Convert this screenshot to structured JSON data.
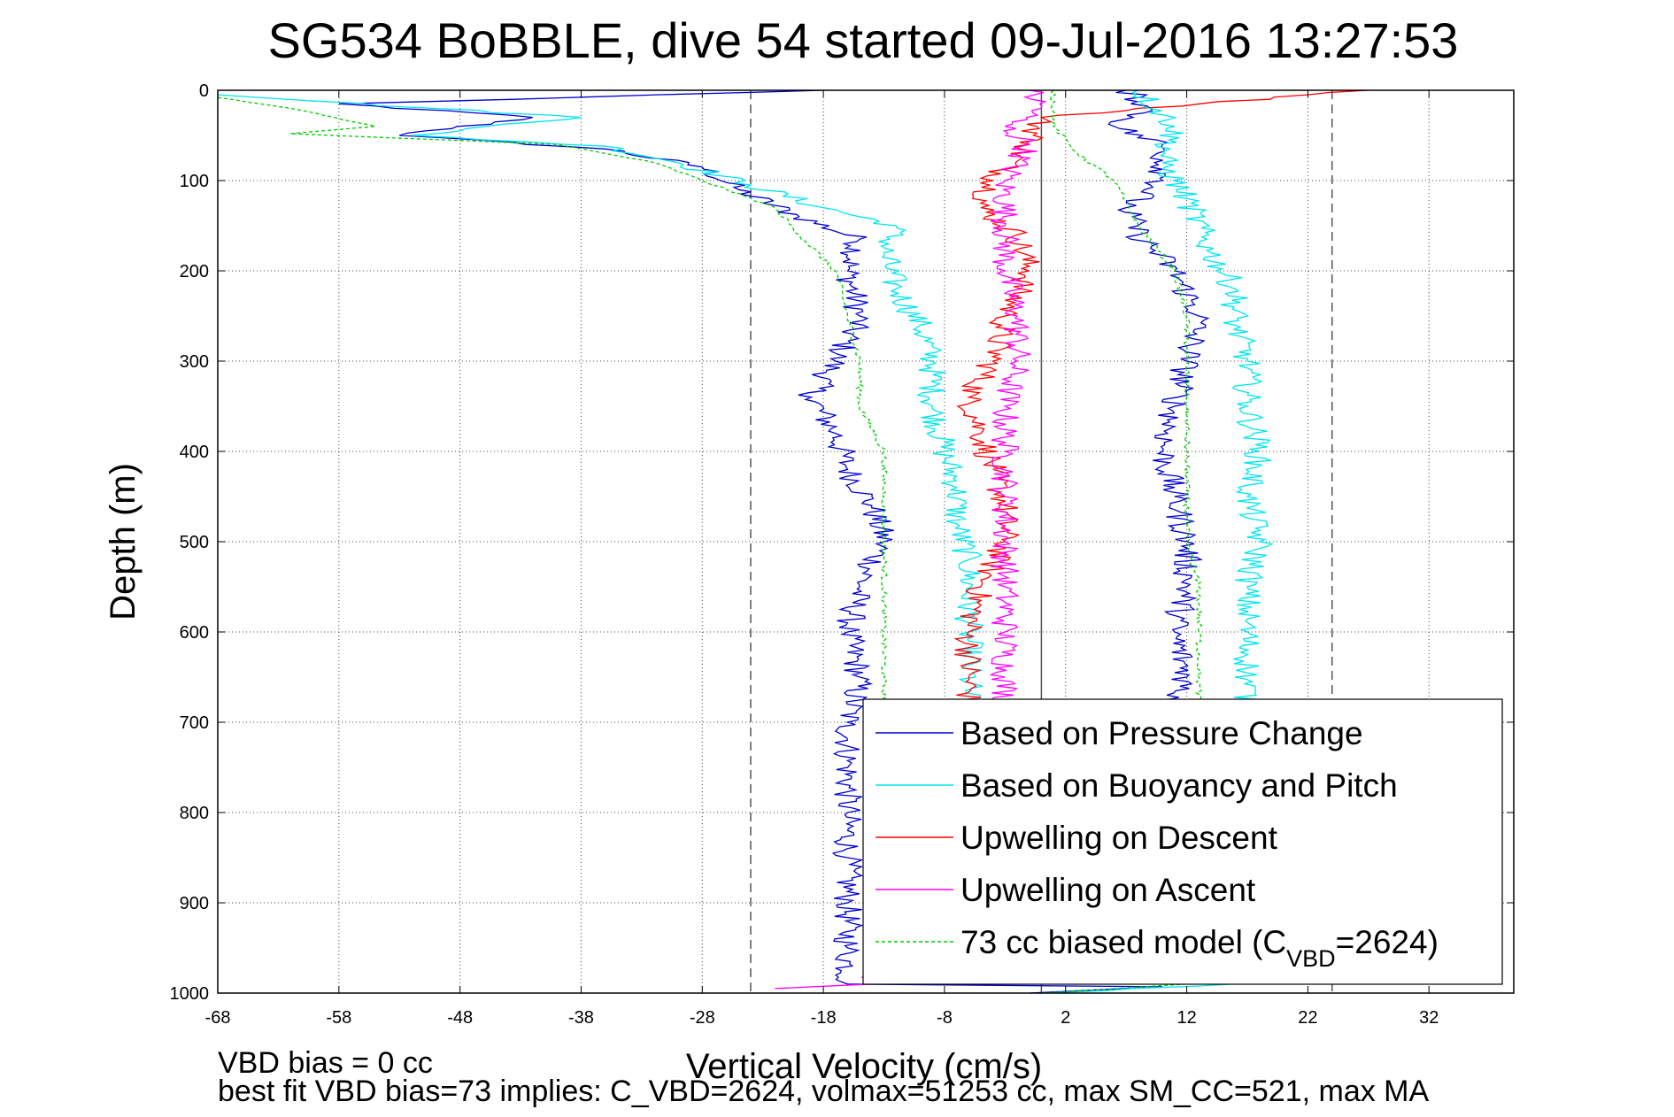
{
  "chart_data": {
    "type": "line",
    "title": "SG534 BoBBLE, dive 54 started 09-Jul-2016 13:27:53",
    "xlabel": "Vertical Velocity (cm/s)",
    "ylabel": "Depth (m)",
    "xlim": [
      -68,
      39
    ],
    "ylim": [
      0,
      1000
    ],
    "y_reversed": true,
    "grid": true,
    "legend_position": "bottom-right",
    "x_ticks": [
      "-68",
      "-58",
      "-48",
      "-38",
      "-28",
      "-18",
      "-8",
      "2",
      "12",
      "22",
      "32"
    ],
    "y_ticks": [
      "0",
      "100",
      "200",
      "300",
      "400",
      "500",
      "600",
      "700",
      "800",
      "900",
      "1000"
    ],
    "reference_lines": [
      {
        "x": -24,
        "style": "dashed"
      },
      {
        "x": 24,
        "style": "dashed"
      },
      {
        "x": 0,
        "style": "solid"
      }
    ],
    "series": [
      {
        "name": "Based on Pressure Change",
        "color": "#0000cc",
        "style": "solid",
        "points": [
          [
            -18,
            0
          ],
          [
            -58,
            15
          ],
          [
            -42,
            30
          ],
          [
            -53,
            50
          ],
          [
            -36,
            65
          ],
          [
            -28,
            85
          ],
          [
            -25,
            110
          ],
          [
            -20,
            140
          ],
          [
            -15,
            165
          ],
          [
            -16,
            200
          ],
          [
            -15,
            250
          ],
          [
            -17,
            300
          ],
          [
            -19,
            340
          ],
          [
            -17,
            380
          ],
          [
            -16,
            420
          ],
          [
            -14,
            460
          ],
          [
            -13,
            500
          ],
          [
            -15,
            550
          ],
          [
            -16,
            600
          ],
          [
            -15,
            650
          ],
          [
            -16,
            700
          ],
          [
            -16,
            750
          ],
          [
            -16,
            800
          ],
          [
            -16,
            850
          ],
          [
            -16,
            900
          ],
          [
            -16,
            950
          ],
          [
            -16,
            990
          ],
          [
            10,
            993
          ],
          [
            -1,
            1000
          ]
        ]
      },
      {
        "name": "Based on Buoyancy and Pitch",
        "color": "#00e5ee",
        "style": "solid",
        "points": [
          [
            -68,
            5
          ],
          [
            -60,
            12
          ],
          [
            -38,
            30
          ],
          [
            -52,
            50
          ],
          [
            -36,
            62
          ],
          [
            -30,
            80
          ],
          [
            -24,
            105
          ],
          [
            -18,
            130
          ],
          [
            -12,
            150
          ],
          [
            -13,
            180
          ],
          [
            -12,
            220
          ],
          [
            -10,
            260
          ],
          [
            -9,
            300
          ],
          [
            -9,
            350
          ],
          [
            -8,
            400
          ],
          [
            -7,
            440
          ],
          [
            -7,
            480
          ],
          [
            -6,
            520
          ],
          [
            -6,
            600
          ],
          [
            -6,
            700
          ],
          [
            -6,
            800
          ],
          [
            -6,
            900
          ],
          [
            -6,
            980
          ],
          [
            30,
            982
          ],
          [
            0,
            1000
          ]
        ]
      },
      {
        "name": "Upwelling on Descent",
        "color": "#ff0000",
        "style": "solid",
        "points": [
          [
            27,
            0
          ],
          [
            0,
            30
          ],
          [
            -1,
            60
          ],
          [
            -4,
            100
          ],
          [
            -5,
            130
          ],
          [
            -2,
            160
          ],
          [
            -1,
            200
          ],
          [
            -3,
            250
          ],
          [
            -4,
            300
          ],
          [
            -6,
            340
          ],
          [
            -5,
            380
          ],
          [
            -4,
            420
          ],
          [
            -3,
            460
          ],
          [
            -3,
            500
          ],
          [
            -5,
            550
          ],
          [
            -6,
            600
          ],
          [
            -6,
            650
          ],
          [
            -6,
            680
          ]
        ]
      },
      {
        "name": "Upwelling on Ascent",
        "color": "#ff00ff",
        "style": "solid",
        "points": [
          [
            -1,
            0
          ],
          [
            0,
            20
          ],
          [
            -3,
            40
          ],
          [
            -1,
            60
          ],
          [
            -3,
            100
          ],
          [
            -3,
            150
          ],
          [
            -3,
            200
          ],
          [
            -2,
            250
          ],
          [
            -2,
            300
          ],
          [
            -3,
            350
          ],
          [
            -3,
            400
          ],
          [
            -3,
            450
          ],
          [
            -3,
            500
          ],
          [
            -3,
            550
          ],
          [
            -3,
            600
          ],
          [
            -3,
            650
          ],
          [
            -3,
            680
          ],
          [
            -14,
            990
          ],
          [
            -22,
            995
          ]
        ]
      },
      {
        "name": "73 cc biased model (C_VBD=2624)",
        "color": "#00cc00",
        "style": "dashed",
        "points": [
          [
            -68,
            8
          ],
          [
            -62,
            20
          ],
          [
            -55,
            40
          ],
          [
            -62,
            48
          ],
          [
            -40,
            60
          ],
          [
            -32,
            80
          ],
          [
            -26,
            110
          ],
          [
            -22,
            130
          ],
          [
            -20,
            160
          ],
          [
            -17,
            200
          ],
          [
            -16,
            250
          ],
          [
            -15,
            300
          ],
          [
            -15,
            350
          ],
          [
            -13,
            400
          ],
          [
            -13,
            450
          ],
          [
            -13,
            500
          ],
          [
            -13,
            550
          ],
          [
            -13,
            600
          ],
          [
            -13,
            650
          ],
          [
            -13,
            700
          ],
          [
            -13,
            800
          ],
          [
            -13,
            900
          ],
          [
            -13,
            980
          ],
          [
            18,
            985
          ],
          [
            0,
            1000
          ]
        ]
      },
      {
        "name": "",
        "color": "#0000cc",
        "style": "solid",
        "points": [
          [
            7,
            0
          ],
          [
            9,
            20
          ],
          [
            6,
            40
          ],
          [
            10,
            60
          ],
          [
            10,
            100
          ],
          [
            7,
            130
          ],
          [
            8,
            160
          ],
          [
            11,
            200
          ],
          [
            13,
            250
          ],
          [
            12,
            300
          ],
          [
            11,
            350
          ],
          [
            10,
            400
          ],
          [
            11,
            450
          ],
          [
            12,
            500
          ],
          [
            12,
            550
          ],
          [
            11,
            600
          ],
          [
            12,
            650
          ],
          [
            11,
            680
          ]
        ]
      },
      {
        "name": "",
        "color": "#00e5ee",
        "style": "solid",
        "points": [
          [
            8,
            0
          ],
          [
            11,
            40
          ],
          [
            10,
            80
          ],
          [
            12,
            120
          ],
          [
            14,
            180
          ],
          [
            16,
            220
          ],
          [
            16,
            260
          ],
          [
            17,
            300
          ],
          [
            17,
            350
          ],
          [
            18,
            400
          ],
          [
            17,
            450
          ],
          [
            18,
            500
          ],
          [
            17,
            550
          ],
          [
            17,
            600
          ],
          [
            17,
            640
          ],
          [
            17,
            680
          ]
        ]
      },
      {
        "name": "",
        "color": "#00cc00",
        "style": "dashed",
        "points": [
          [
            1,
            0
          ],
          [
            1,
            40
          ],
          [
            3,
            70
          ],
          [
            6,
            100
          ],
          [
            8,
            150
          ],
          [
            11,
            200
          ],
          [
            12,
            250
          ],
          [
            12,
            300
          ],
          [
            12,
            350
          ],
          [
            12,
            400
          ],
          [
            12,
            450
          ],
          [
            12,
            500
          ],
          [
            13,
            550
          ],
          [
            13,
            600
          ],
          [
            13,
            650
          ],
          [
            13,
            680
          ]
        ]
      }
    ],
    "footer_lines": [
      "VBD bias = 0 cc",
      "best fit VBD bias=73 implies: C_VBD=2624, volmax=51253 cc, max SM_CC=521, max MA"
    ]
  }
}
